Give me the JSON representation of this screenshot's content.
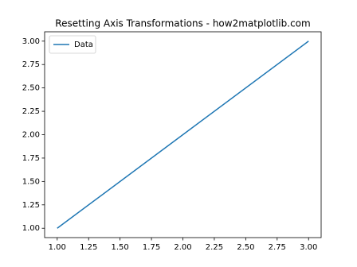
{
  "chart_data": {
    "type": "line",
    "title": "Resetting Axis Transformations - how2matplotlib.com",
    "x": [
      1,
      2,
      3
    ],
    "series": [
      {
        "name": "Data",
        "color": "#1f77b4",
        "values": [
          1,
          2,
          3
        ]
      }
    ],
    "xlim": [
      0.9,
      3.1
    ],
    "ylim": [
      0.9,
      3.1
    ],
    "xticks": [
      {
        "value": 1,
        "label": "1.00"
      },
      {
        "value": 1.25,
        "label": "1.25"
      },
      {
        "value": 1.5,
        "label": "1.50"
      },
      {
        "value": 1.75,
        "label": "1.75"
      },
      {
        "value": 2,
        "label": "2.00"
      },
      {
        "value": 2.25,
        "label": "2.25"
      },
      {
        "value": 2.5,
        "label": "2.50"
      },
      {
        "value": 2.75,
        "label": "2.75"
      },
      {
        "value": 3,
        "label": "3.00"
      }
    ],
    "yticks": [
      {
        "value": 1,
        "label": "1.00"
      },
      {
        "value": 1.25,
        "label": "1.25"
      },
      {
        "value": 1.5,
        "label": "1.50"
      },
      {
        "value": 1.75,
        "label": "1.75"
      },
      {
        "value": 2,
        "label": "2.00"
      },
      {
        "value": 2.25,
        "label": "2.25"
      },
      {
        "value": 2.5,
        "label": "2.50"
      },
      {
        "value": 2.75,
        "label": "2.75"
      },
      {
        "value": 3,
        "label": "3.00"
      }
    ],
    "legend": "upper left",
    "grid": false
  }
}
